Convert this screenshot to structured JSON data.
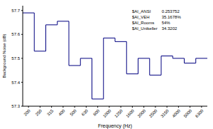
{
  "chart_data": {
    "type": "line",
    "line_style": "step",
    "xlabel": "Frequency (Hz)",
    "ylabel": "Background Noise (dB)",
    "categories": [
      "200",
      "250",
      "315",
      "400",
      "500",
      "630",
      "800",
      "1000",
      "1250",
      "1600",
      "2000",
      "2500",
      "3150",
      "4000",
      "5000",
      "6300"
    ],
    "values": [
      57.69,
      57.53,
      57.64,
      57.655,
      57.47,
      57.5,
      57.33,
      57.585,
      57.57,
      57.435,
      57.5,
      57.43,
      57.51,
      57.5,
      57.48,
      57.5
    ],
    "color": "#000080",
    "ylim": [
      57.3,
      57.72
    ],
    "yticks": [
      57.3,
      57.4,
      57.5,
      57.6,
      57.7
    ],
    "grid": false,
    "annotations": [
      {
        "name": "$AI_ANSI",
        "text": "0.253752"
      },
      {
        "name": "$AI_VEH",
        "text": "35.1678%"
      },
      {
        "name": "$AI_Rooms",
        "text": "54%"
      },
      {
        "name": "$AI_Unikeller",
        "text": "34.3202"
      }
    ]
  }
}
